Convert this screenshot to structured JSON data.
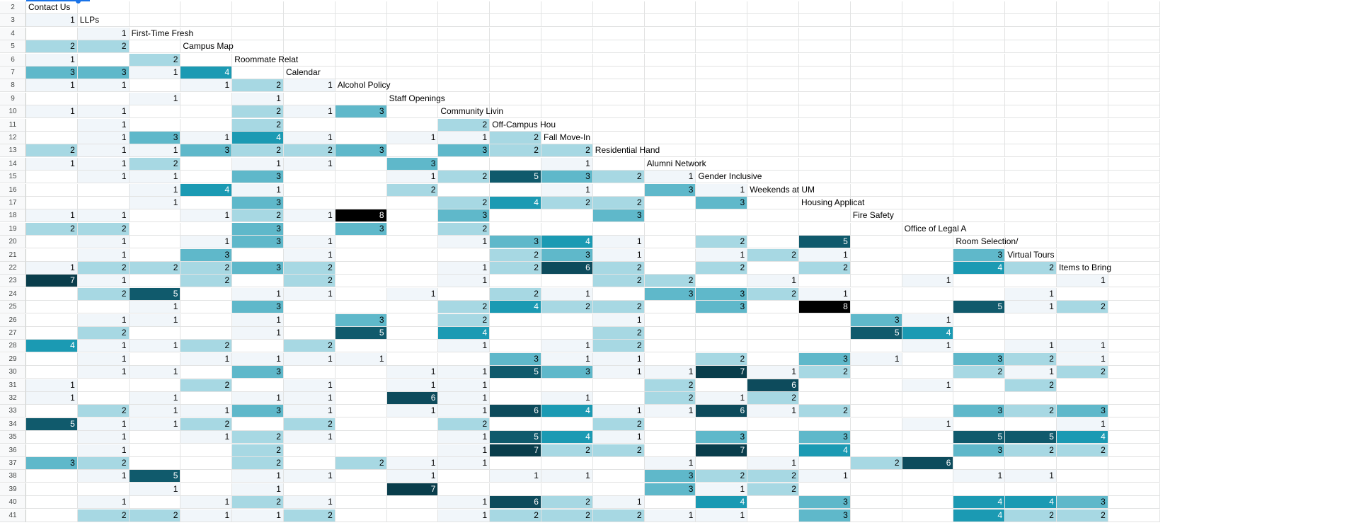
{
  "sheet": {
    "first_row": 2,
    "palette": {
      "1": "#f1f6fa",
      "2": "#a7d8e3",
      "3": "#5fb8ca",
      "4": "#1b9ab3",
      "5": "#105a6c",
      "6": "#0d4b5c",
      "7": "#093d4b",
      "8": "#000000"
    },
    "labels": [
      {
        "row": 2,
        "col": 0,
        "text": "Contact Us"
      },
      {
        "row": 3,
        "col": 1,
        "text": "LLPs"
      },
      {
        "row": 4,
        "col": 2,
        "text": "First-Time Fresh"
      },
      {
        "row": 5,
        "col": 3,
        "text": "Campus Map"
      },
      {
        "row": 6,
        "col": 4,
        "text": "Roommate Relat"
      },
      {
        "row": 7,
        "col": 5,
        "text": "Calendar"
      },
      {
        "row": 8,
        "col": 6,
        "text": "Alcohol Policy"
      },
      {
        "row": 9,
        "col": 7,
        "text": "Staff Openings"
      },
      {
        "row": 10,
        "col": 8,
        "text": "Community Livin"
      },
      {
        "row": 11,
        "col": 9,
        "text": "Off-Campus Hou"
      },
      {
        "row": 12,
        "col": 10,
        "text": "Fall Move-In"
      },
      {
        "row": 13,
        "col": 11,
        "text": "Residential Hand"
      },
      {
        "row": 14,
        "col": 12,
        "text": "Alumni Network"
      },
      {
        "row": 15,
        "col": 13,
        "text": "Gender Inclusive"
      },
      {
        "row": 16,
        "col": 14,
        "text": "Weekends at UM"
      },
      {
        "row": 17,
        "col": 15,
        "text": "Housing Applicat"
      },
      {
        "row": 18,
        "col": 16,
        "text": "Fire Safety"
      },
      {
        "row": 19,
        "col": 17,
        "text": "Office of Legal A"
      },
      {
        "row": 20,
        "col": 18,
        "text": "Room Selection/"
      },
      {
        "row": 21,
        "col": 19,
        "text": "Virtual Tours"
      },
      {
        "row": 22,
        "col": 20,
        "text": "Items to Bring"
      }
    ],
    "rows": [
      [],
      [
        "1"
      ],
      [
        "",
        "1"
      ],
      [
        "2",
        "2"
      ],
      [
        "1",
        "",
        "2"
      ],
      [
        "3",
        "3",
        "1",
        "4"
      ],
      [
        "1",
        "1",
        "",
        "1",
        "2",
        "1"
      ],
      [
        "",
        "",
        "1",
        "",
        "1"
      ],
      [
        "1",
        "1",
        "",
        "",
        "2",
        "1",
        "3"
      ],
      [
        "",
        "1",
        "",
        "",
        "2",
        "",
        "",
        "",
        "2"
      ],
      [
        "",
        "1",
        "3",
        "1",
        "4",
        "1",
        "",
        "1",
        "1",
        "2"
      ],
      [
        "2",
        "1",
        "1",
        "3",
        "2",
        "2",
        "3",
        "",
        "3",
        "2",
        "2"
      ],
      [
        "1",
        "1",
        "2",
        "",
        "1",
        "1",
        "",
        "3",
        "",
        "",
        "1"
      ],
      [
        "",
        "1",
        "1",
        "",
        "3",
        "",
        "",
        "1",
        "2",
        "5",
        "3",
        "2",
        "1"
      ],
      [
        "",
        "",
        "1",
        "4",
        "1",
        "",
        "",
        "2",
        "",
        "",
        "1",
        "",
        "3",
        "1"
      ],
      [
        "",
        "",
        "1",
        "",
        "3",
        "",
        "",
        "",
        "2",
        "4",
        "2",
        "2",
        "",
        "3"
      ],
      [
        "1",
        "1",
        "",
        "1",
        "2",
        "1",
        "8",
        "",
        "3",
        "",
        "",
        "3"
      ],
      [
        "2",
        "2",
        "",
        "",
        "3",
        "",
        "3",
        "",
        "2"
      ],
      [
        "",
        "1",
        "",
        "1",
        "3",
        "1",
        "",
        "",
        "1",
        "3",
        "4",
        "1",
        "",
        "2",
        "",
        "5"
      ],
      [
        "",
        "1",
        "",
        "3",
        "",
        "1",
        "",
        "",
        "",
        "2",
        "3",
        "1",
        "",
        "1",
        "2",
        "1",
        "",
        "",
        "3"
      ],
      [
        "1",
        "2",
        "2",
        "2",
        "3",
        "2",
        "",
        "",
        "1",
        "2",
        "6",
        "2",
        "",
        "2",
        "",
        "2",
        "",
        "",
        "4",
        "2"
      ],
      [
        "7",
        "1",
        "",
        "2",
        "",
        "2",
        "",
        "",
        "1",
        "",
        "",
        "2",
        "2",
        "",
        "1",
        "",
        "",
        "1",
        "",
        "",
        "1"
      ],
      [
        "",
        "2",
        "5",
        "",
        "1",
        "1",
        "",
        "1",
        "",
        "2",
        "1",
        "",
        "3",
        "3",
        "2",
        "1",
        "",
        "",
        "",
        "1"
      ],
      [
        "",
        "",
        "1",
        "",
        "3",
        "",
        "",
        "",
        "2",
        "4",
        "2",
        "2",
        "",
        "3",
        "",
        "8",
        "",
        "",
        "5",
        "1",
        "2"
      ],
      [
        "",
        "1",
        "1",
        "",
        "1",
        "",
        "3",
        "",
        "2",
        "",
        "",
        "1",
        "",
        "",
        "",
        "",
        "3",
        "1"
      ],
      [
        "",
        "2",
        "",
        "",
        "1",
        "",
        "5",
        "",
        "4",
        "",
        "",
        "2",
        "",
        "",
        "",
        "",
        "5",
        "4"
      ],
      [
        "4",
        "1",
        "1",
        "2",
        "",
        "2",
        "",
        "",
        "1",
        "",
        "1",
        "2",
        "",
        "",
        "",
        "",
        "",
        "1",
        "",
        "1",
        "1"
      ],
      [
        "",
        "1",
        "",
        "1",
        "1",
        "1",
        "1",
        "",
        "",
        "3",
        "1",
        "1",
        "",
        "2",
        "",
        "3",
        "1",
        "",
        "3",
        "2",
        "1"
      ],
      [
        "",
        "1",
        "1",
        "",
        "3",
        "",
        "",
        "1",
        "1",
        "5",
        "3",
        "1",
        "1",
        "7",
        "1",
        "2",
        "",
        "",
        "2",
        "1",
        "2"
      ],
      [
        "1",
        "",
        "",
        "2",
        "",
        "1",
        "",
        "1",
        "1",
        "",
        "",
        "",
        "2",
        "",
        "6",
        "",
        "",
        "1",
        "",
        "2"
      ],
      [
        "1",
        "",
        "1",
        "",
        "1",
        "1",
        "",
        "6",
        "1",
        "",
        "1",
        "",
        "2",
        "1",
        "2"
      ],
      [
        "",
        "2",
        "1",
        "1",
        "3",
        "1",
        "",
        "1",
        "1",
        "6",
        "4",
        "1",
        "1",
        "6",
        "1",
        "2",
        "",
        "",
        "3",
        "2",
        "3"
      ],
      [
        "5",
        "1",
        "1",
        "2",
        "",
        "2",
        "",
        "",
        "2",
        "",
        "",
        "2",
        "",
        "",
        "",
        "",
        "",
        "1",
        "",
        "",
        "1"
      ],
      [
        "",
        "1",
        "",
        "1",
        "2",
        "1",
        "",
        "",
        "1",
        "5",
        "4",
        "1",
        "",
        "3",
        "",
        "3",
        "",
        "",
        "5",
        "5",
        "4"
      ],
      [
        "",
        "1",
        "",
        "",
        "2",
        "",
        "",
        "",
        "1",
        "7",
        "2",
        "2",
        "",
        "7",
        "",
        "4",
        "",
        "",
        "3",
        "2",
        "2"
      ],
      [
        "3",
        "2",
        "",
        "",
        "2",
        "",
        "2",
        "1",
        "1",
        "",
        "",
        "",
        "1",
        "",
        "1",
        "",
        "2",
        "6"
      ],
      [
        "",
        "1",
        "5",
        "",
        "1",
        "1",
        "",
        "1",
        "",
        "1",
        "1",
        "",
        "3",
        "2",
        "2",
        "1",
        "",
        "",
        "1",
        "1"
      ],
      [
        "",
        "",
        "1",
        "",
        "1",
        "",
        "",
        "7",
        "",
        "",
        "",
        "",
        "3",
        "1",
        "2"
      ],
      [
        "",
        "1",
        "",
        "1",
        "2",
        "1",
        "",
        "",
        "1",
        "6",
        "2",
        "1",
        "",
        "4",
        "",
        "3",
        "",
        "",
        "4",
        "4",
        "3"
      ],
      [
        "",
        "2",
        "2",
        "1",
        "1",
        "2",
        "",
        "",
        "1",
        "2",
        "2",
        "2",
        "1",
        "1",
        "",
        "3",
        "",
        "",
        "4",
        "2",
        "2"
      ]
    ]
  }
}
